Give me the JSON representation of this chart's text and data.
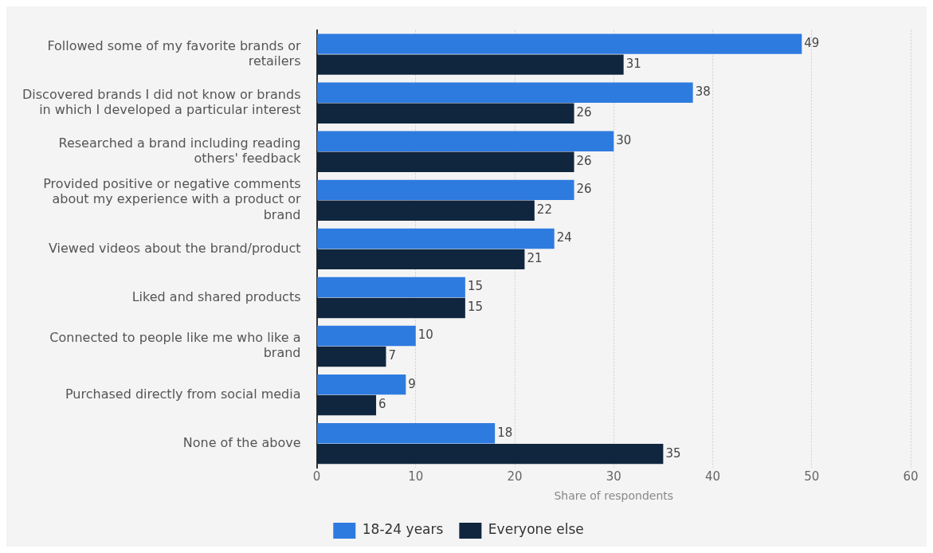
{
  "chart_data": {
    "type": "bar",
    "orientation": "horizontal",
    "xlabel": "Share of respondents",
    "categories": [
      "Followed some of my favorite brands or retailers",
      "Discovered brands I did not know or brands in which I developed a particular interest",
      "Researched a brand including reading others' feedback",
      "Provided positive or negative comments about my experience with a product or brand",
      "Viewed videos about the brand/product",
      "Liked and shared products",
      "Connected to people like me who like a brand",
      "Purchased directly from social media",
      "None of the above"
    ],
    "series": [
      {
        "name": "18-24 years",
        "color": "#2e7be0",
        "values": [
          49,
          38,
          30,
          26,
          24,
          15,
          10,
          9,
          18
        ]
      },
      {
        "name": "Everyone else",
        "color": "#10263e",
        "values": [
          31,
          26,
          26,
          22,
          21,
          15,
          7,
          6,
          35
        ]
      }
    ],
    "xlim": [
      0,
      60
    ],
    "xticks": [
      0,
      10,
      20,
      30,
      40,
      50,
      60
    ],
    "grid": "x",
    "legend": "bottom",
    "data_labels": true
  }
}
